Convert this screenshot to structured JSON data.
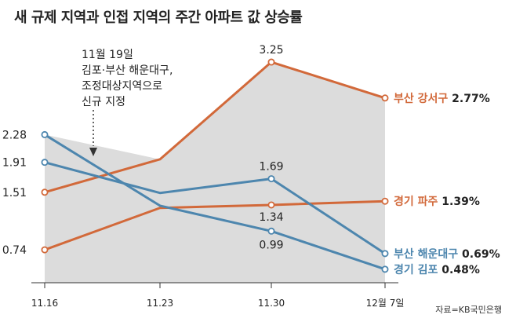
{
  "title": "새 규제 지역과 인접 지역의 주간 아파트 값 상승률",
  "source": "자료=KB국민은행",
  "chart_data": {
    "type": "line",
    "title": "새 규제 지역과 인접 지역의 주간 아파트 값 상승률",
    "categories": [
      "11.16",
      "11.23",
      "11.30",
      "12월 7일"
    ],
    "ylim": [
      0.3,
      3.45
    ],
    "grid": false,
    "series": [
      {
        "name": "부산 강서구",
        "color": "#d2693a",
        "values": [
          1.51,
          1.95,
          3.25,
          2.77
        ],
        "end_label_name": "부산 강서구",
        "end_label_value": "2.77%",
        "point_labels": [
          "1.51",
          "",
          "3.25",
          ""
        ]
      },
      {
        "name": "경기 파주",
        "color": "#d2693a",
        "values": [
          0.74,
          1.3,
          1.34,
          1.39
        ],
        "end_label_name": "경기 파주",
        "end_label_value": "1.39%",
        "point_labels": [
          "0.74",
          "",
          "1.34",
          ""
        ]
      },
      {
        "name": "부산 해운대구",
        "color": "#4d86ae",
        "values": [
          1.91,
          1.5,
          1.69,
          0.69
        ],
        "end_label_name": "부산 해운대구",
        "end_label_value": "0.69%",
        "point_labels": [
          "1.91",
          "",
          "1.69",
          ""
        ]
      },
      {
        "name": "경기 김포",
        "color": "#4d86ae",
        "values": [
          2.28,
          1.33,
          0.99,
          0.48
        ],
        "end_label_name": "경기 김포",
        "end_label_value": "0.48%",
        "point_labels": [
          "2.28",
          "",
          "0.99",
          ""
        ]
      }
    ],
    "annotation": {
      "lines": [
        "11월 19일",
        "김포·부산 해운대구,",
        "조정대상지역으로",
        "신규 지정"
      ]
    },
    "area_fill": "#dcdcdc"
  }
}
